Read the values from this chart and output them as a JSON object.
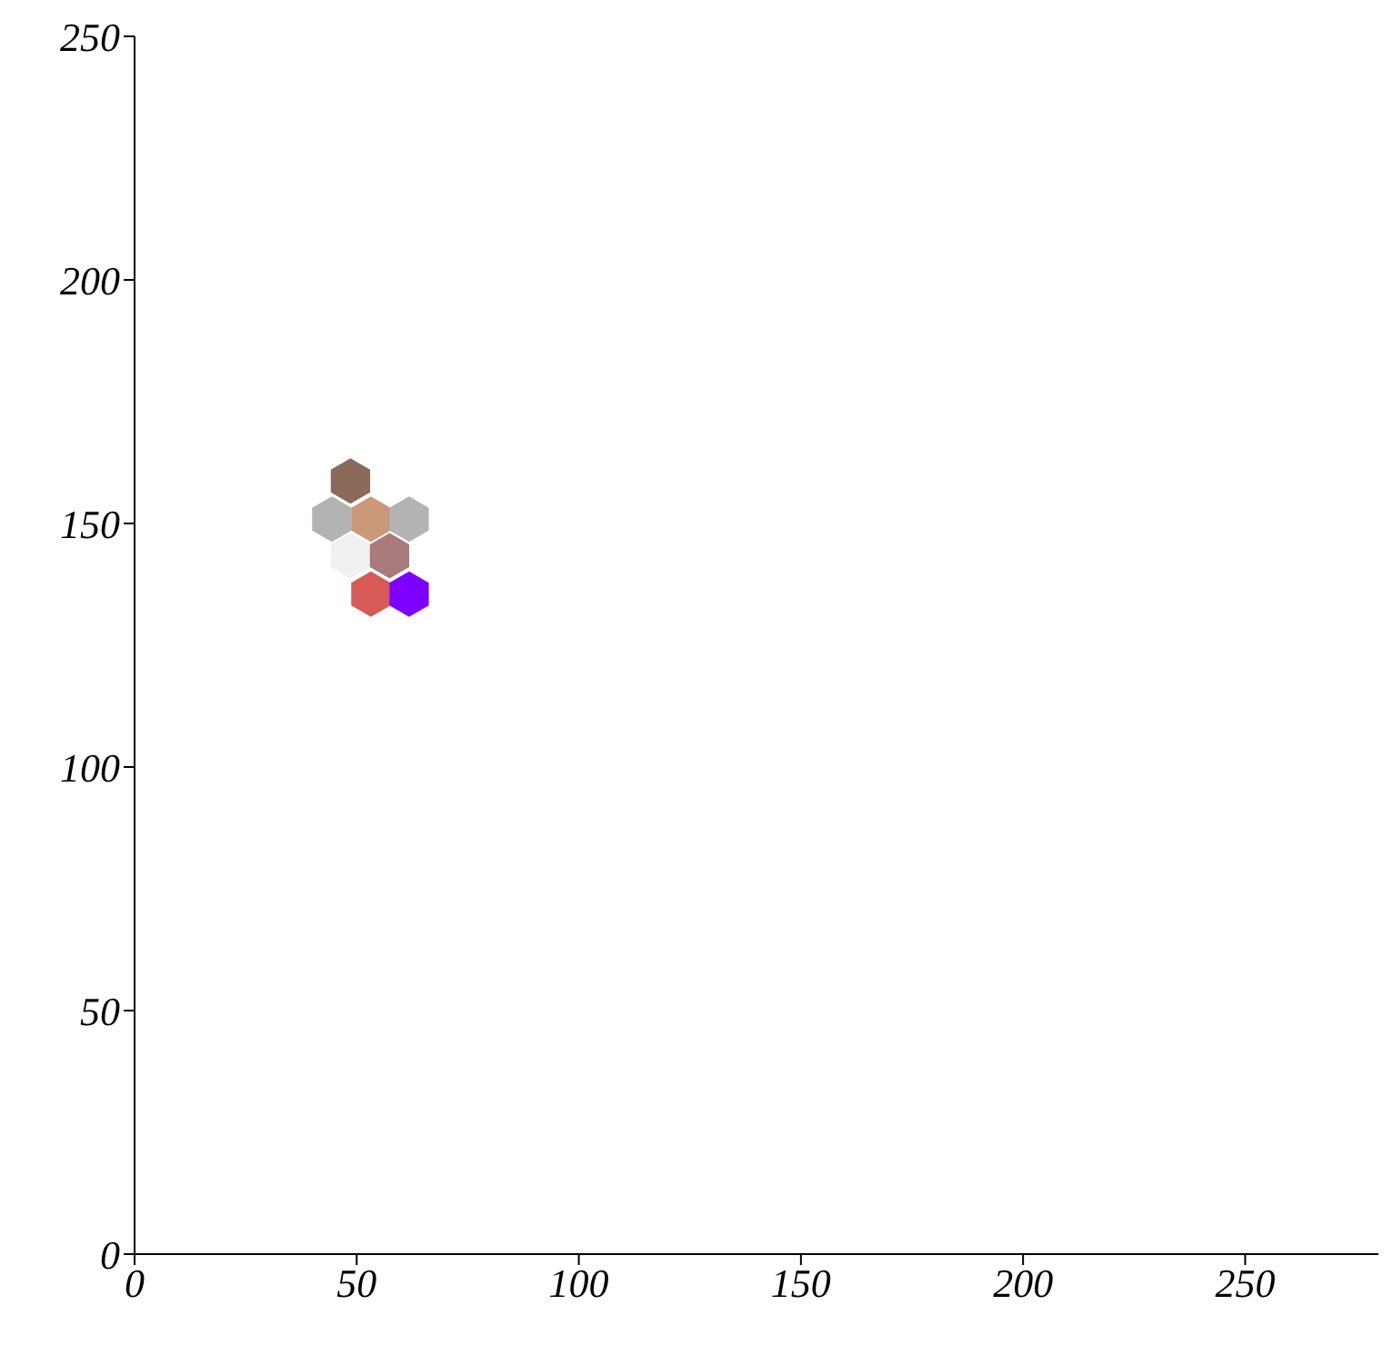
{
  "chart_data": {
    "type": "scatter",
    "x": [
      48.6,
      44.4,
      53.2,
      61.8,
      48.6,
      57.4,
      53.2,
      61.8
    ],
    "values": [
      158.7,
      150.9,
      150.9,
      150.9,
      143.4,
      143.4,
      135.5,
      135.5
    ],
    "colors": [
      "#8b6a5a",
      "#b3b3b3",
      "#c9997a",
      "#b3b3b3",
      "#f0f0f0",
      "#a87a7c",
      "#d65a55",
      "#7f00ff"
    ],
    "xlim": [
      0,
      280
    ],
    "xticks": [
      0,
      50,
      100,
      150,
      200,
      250
    ],
    "ylim": [
      0,
      250
    ],
    "yticks": [
      0,
      50,
      100,
      150,
      200,
      250
    ],
    "grid": false,
    "legend": false
  }
}
